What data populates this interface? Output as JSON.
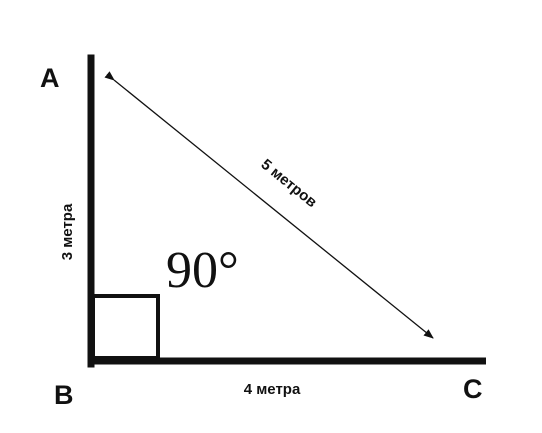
{
  "vertices": {
    "a": "A",
    "b": "B",
    "c": "C"
  },
  "sides": {
    "ab": "3 метра",
    "bc": "4 метра",
    "ac": "5 метров"
  },
  "angle": "90°",
  "colors": {
    "stroke": "#111111",
    "background": "#ffffff"
  }
}
